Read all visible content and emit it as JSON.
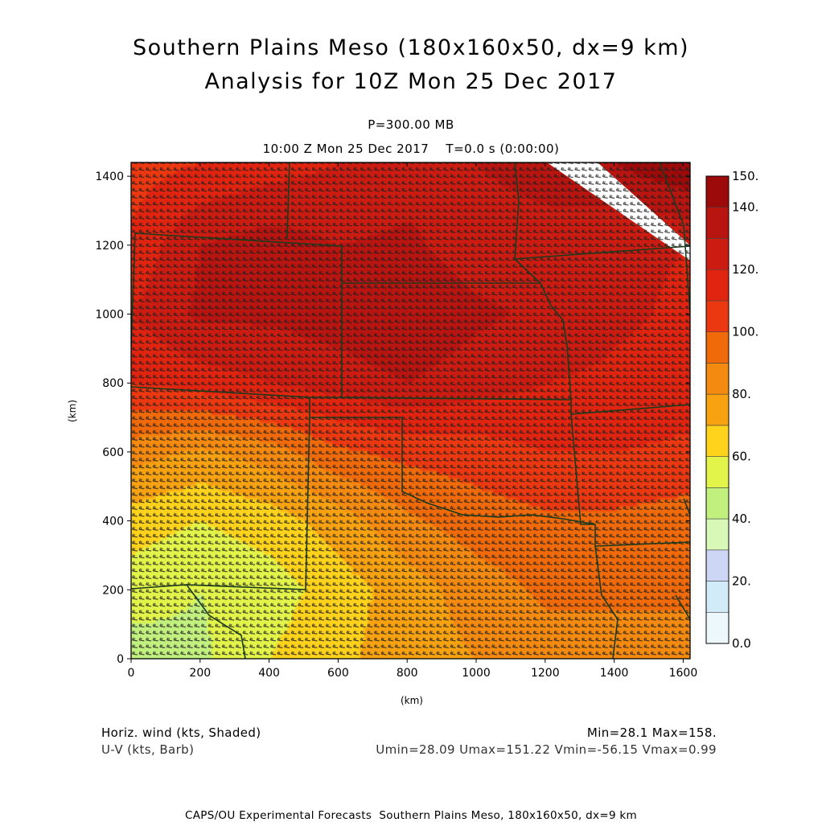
{
  "header": {
    "title_line1": "Southern Plains Meso (180x160x50, dx=9 km)",
    "title_line2": "Analysis for 10Z Mon 25 Dec 2017",
    "pressure_label": "P=300.00 MB",
    "time_label": "10:00 Z Mon 25 Dec 2017    T=0.0 s (0:00:00)"
  },
  "footer": {
    "variable_line1": "Horiz. wind (kts, Shaded)",
    "variable_line2": "U-V (kts, Barb)",
    "minmax_line1": "Min=28.1 Max=158.",
    "minmax_line2": "Umin=28.09 Umax=151.22 Vmin=-56.15 Vmax=0.99",
    "credit": "CAPS/OU Experimental Forecasts  Southern Plains Meso, 180x160x50, dx=9 km"
  },
  "chart_data": {
    "type": "heatmap",
    "description_fields": "Horizontal wind speed (kts) shaded with U-V wind barbs",
    "xlabel": "(km)",
    "ylabel": "(km)",
    "xlim": [
      0,
      1620
    ],
    "ylim": [
      0,
      1440
    ],
    "x_ticks": [
      "0",
      "200",
      "400",
      "600",
      "800",
      "1000",
      "1200",
      "1400",
      "1600"
    ],
    "y_ticks": [
      "0",
      "200",
      "400",
      "600",
      "800",
      "1000",
      "1200",
      "1400"
    ],
    "colorbar": {
      "levels": [
        0,
        10,
        20,
        30,
        40,
        50,
        60,
        70,
        80,
        90,
        100,
        110,
        120,
        130,
        140,
        150
      ],
      "labels": [
        "0.0",
        "20.",
        "40.",
        "60.",
        "80.",
        "100.",
        "120.",
        "140.",
        "150."
      ],
      "colors": [
        "#ecf8fc",
        "#d2ebf8",
        "#cdd7f5",
        "#d8f8b8",
        "#c2f07e",
        "#e2f44a",
        "#ffd21c",
        "#f8a212",
        "#f58a10",
        "#f06a0a",
        "#ec3810",
        "#e02410",
        "#cc1c12",
        "#b81410",
        "#9c0a0a"
      ]
    },
    "approx_field_kts": {
      "grid_x_km": [
        0,
        200,
        400,
        600,
        800,
        1000,
        1200,
        1400,
        1620
      ],
      "grid_y_km": [
        0,
        200,
        400,
        600,
        800,
        1000,
        1200,
        1440
      ],
      "values": [
        [
          45,
          48,
          60,
          68,
          75,
          80,
          85,
          85,
          85
        ],
        [
          55,
          50,
          55,
          65,
          75,
          85,
          92,
          92,
          92
        ],
        [
          65,
          60,
          65,
          75,
          88,
          95,
          98,
          98,
          95
        ],
        [
          85,
          78,
          85,
          98,
          103,
          105,
          110,
          110,
          108
        ],
        [
          110,
          115,
          120,
          125,
          130,
          125,
          120,
          118,
          115
        ],
        [
          120,
          132,
          132,
          135,
          138,
          132,
          128,
          122,
          118
        ],
        [
          112,
          130,
          135,
          130,
          132,
          125,
          125,
          122,
          120
        ],
        [
          105,
          110,
          115,
          120,
          125,
          130,
          135,
          140,
          150
        ]
      ]
    },
    "min": 28.1,
    "max": 158,
    "umin": 28.09,
    "umax": 151.22,
    "vmin": -56.15,
    "vmax": 0.99
  }
}
